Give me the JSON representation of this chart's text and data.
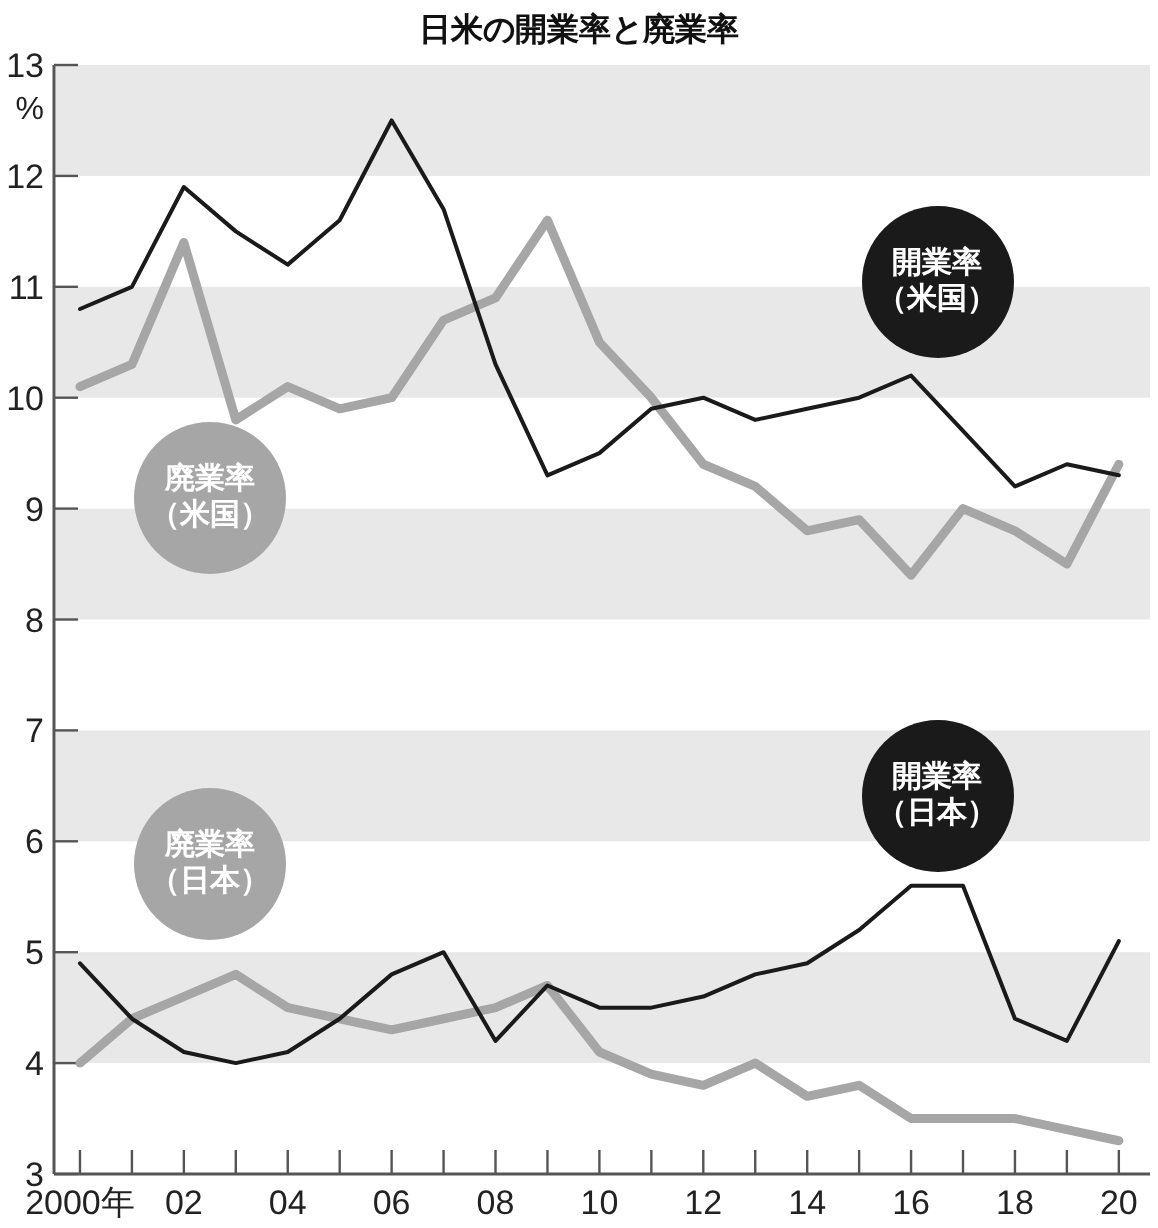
{
  "chart_data": {
    "type": "line",
    "title": "日米の開業率と廃業率",
    "ylabel": "%",
    "x": [
      2000,
      2001,
      2002,
      2003,
      2004,
      2005,
      2006,
      2007,
      2008,
      2009,
      2010,
      2011,
      2012,
      2013,
      2014,
      2015,
      2016,
      2017,
      2018,
      2019,
      2020
    ],
    "series": [
      {
        "name": "開業率（米国）",
        "color": "#1a1a1a",
        "values": [
          10.8,
          11.0,
          11.9,
          11.5,
          11.2,
          11.6,
          12.5,
          11.7,
          10.3,
          9.3,
          9.5,
          9.9,
          10.0,
          9.8,
          9.9,
          10.0,
          10.2,
          9.7,
          9.2,
          9.4,
          9.3
        ]
      },
      {
        "name": "廃業率（米国）",
        "color": "#a6a6a6",
        "values": [
          10.1,
          10.3,
          11.4,
          9.8,
          10.1,
          9.9,
          10.0,
          10.7,
          10.9,
          11.6,
          10.5,
          10.0,
          9.4,
          9.2,
          8.8,
          8.9,
          8.4,
          9.0,
          8.8,
          8.5,
          9.4
        ]
      },
      {
        "name": "開業率（日本）",
        "color": "#1a1a1a",
        "values": [
          4.9,
          4.4,
          4.1,
          4.0,
          4.1,
          4.4,
          4.8,
          5.0,
          4.2,
          4.7,
          4.5,
          4.5,
          4.6,
          4.8,
          4.9,
          5.2,
          5.6,
          5.6,
          4.4,
          4.2,
          5.1
        ]
      },
      {
        "name": "廃業率（日本）",
        "color": "#a6a6a6",
        "values": [
          4.0,
          4.4,
          4.6,
          4.8,
          4.5,
          4.4,
          4.3,
          4.4,
          4.5,
          4.7,
          4.1,
          3.9,
          3.8,
          4.0,
          3.7,
          3.8,
          3.5,
          3.5,
          3.5,
          3.4,
          3.3
        ]
      }
    ],
    "xlim": [
      1999.5,
      2020.6
    ],
    "ylim": [
      3,
      13
    ],
    "xticks": [
      {
        "value": 2000,
        "label": "2000年"
      },
      {
        "value": 2001,
        "label": null
      },
      {
        "value": 2002,
        "label": "02"
      },
      {
        "value": 2003,
        "label": null
      },
      {
        "value": 2004,
        "label": "04"
      },
      {
        "value": 2005,
        "label": null
      },
      {
        "value": 2006,
        "label": "06"
      },
      {
        "value": 2007,
        "label": null
      },
      {
        "value": 2008,
        "label": "08"
      },
      {
        "value": 2009,
        "label": null
      },
      {
        "value": 2010,
        "label": "10"
      },
      {
        "value": 2011,
        "label": null
      },
      {
        "value": 2012,
        "label": "12"
      },
      {
        "value": 2013,
        "label": null
      },
      {
        "value": 2014,
        "label": "14"
      },
      {
        "value": 2015,
        "label": null
      },
      {
        "value": 2016,
        "label": "16"
      },
      {
        "value": 2017,
        "label": null
      },
      {
        "value": 2018,
        "label": "18"
      },
      {
        "value": 2019,
        "label": null
      },
      {
        "value": 2020,
        "label": "20"
      }
    ],
    "yticks": [
      3,
      4,
      5,
      6,
      7,
      8,
      9,
      10,
      11,
      12,
      13
    ],
    "bands": [
      {
        "axis": "y",
        "from": 12,
        "to": 13,
        "color": "#e8e8e8"
      },
      {
        "axis": "y",
        "from": 10,
        "to": 11,
        "color": "#e8e8e8"
      },
      {
        "axis": "y",
        "from": 8,
        "to": 9,
        "color": "#e8e8e8"
      },
      {
        "axis": "y",
        "from": 6,
        "to": 7,
        "color": "#e8e8e8"
      },
      {
        "axis": "y",
        "from": 4,
        "to": 5,
        "color": "#e8e8e8"
      }
    ],
    "line_style": "solid",
    "marker": "none"
  }
}
